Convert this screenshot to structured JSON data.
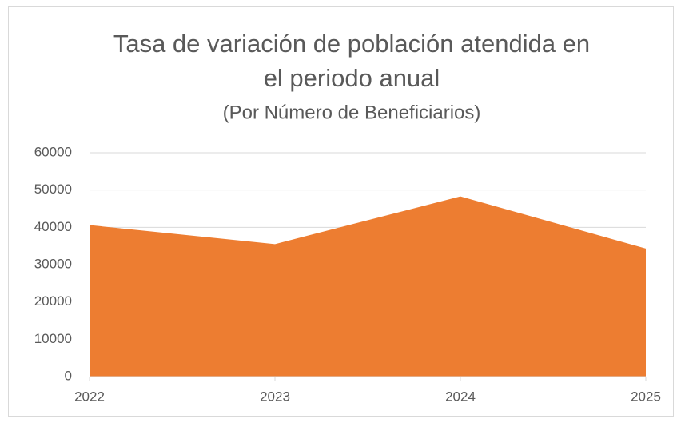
{
  "chart_data": {
    "type": "area",
    "title": [
      "Tasa de variación de población atendida en",
      "el periodo anual"
    ],
    "subtitle": "(Por Número de Beneficiarios)",
    "categories": [
      "2022",
      "2023",
      "2024",
      "2025"
    ],
    "values": [
      40600,
      35500,
      48300,
      34300
    ],
    "color": "#ed7d31",
    "ylim": [
      0,
      60000
    ],
    "yticks": [
      0,
      10000,
      20000,
      30000,
      40000,
      50000,
      60000
    ],
    "grid": true
  }
}
